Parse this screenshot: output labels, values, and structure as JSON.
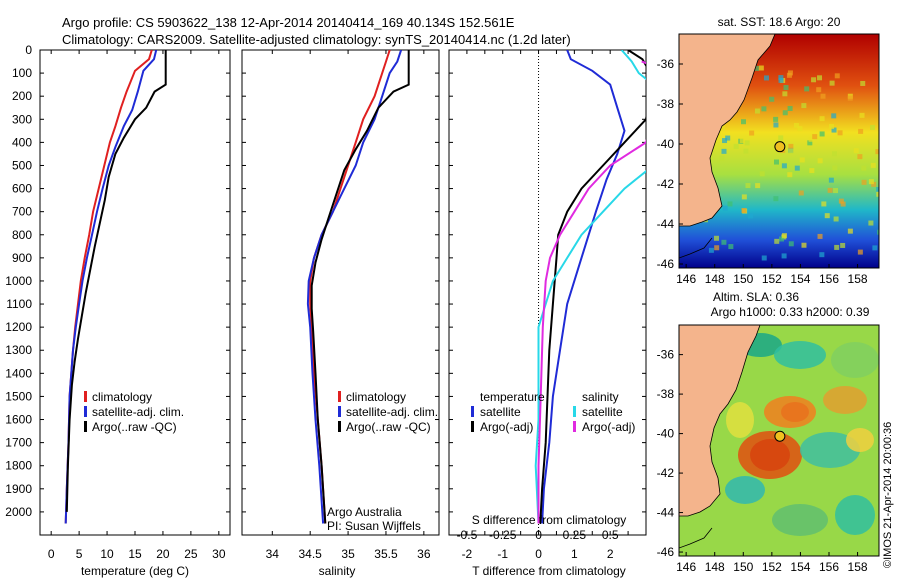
{
  "header": {
    "line1": "Argo profile: CS 5903622_138 12-Apr-2014 20140414_169 40.134S 152.561E",
    "line2": "Climatology: CARS2009. Satellite-adjusted climatology: synTS_20140414.nc (1.2d later)"
  },
  "colors": {
    "climatology": "#e02020",
    "satellite": "#1f2bd6",
    "argo": "#000000",
    "sal_satellite": "#28d8e8",
    "sal_argo": "#e02ae0",
    "land": "#f4b48c"
  },
  "chart_data": [
    {
      "type": "line",
      "xlabel": "temperature (deg C)",
      "xlim": [
        -2,
        32
      ],
      "xticks": [
        0,
        5,
        10,
        15,
        20,
        25,
        30
      ],
      "ylim": [
        2100,
        0
      ],
      "yticks": [
        0,
        100,
        200,
        300,
        400,
        500,
        600,
        700,
        800,
        900,
        1000,
        1100,
        1200,
        1300,
        1400,
        1500,
        1600,
        1700,
        1800,
        1900,
        2000
      ],
      "legend": [
        "climatology",
        "satellite-adj. clim.",
        "Argo(..raw -QC)"
      ],
      "legend_position": "lower-center",
      "series": [
        {
          "name": "climatology",
          "color": "#e02020",
          "points": [
            [
              18,
              0
            ],
            [
              17.5,
              40
            ],
            [
              15,
              90
            ],
            [
              13.5,
              180
            ],
            [
              12.5,
              250
            ],
            [
              11.5,
              330
            ],
            [
              10.5,
              400
            ],
            [
              9.5,
              500
            ],
            [
              8.5,
              600
            ],
            [
              7.5,
              700
            ],
            [
              6.8,
              800
            ],
            [
              6,
              900
            ],
            [
              5.3,
              1000
            ],
            [
              4.8,
              1100
            ],
            [
              4.3,
              1200
            ],
            [
              3.9,
              1300
            ],
            [
              3.6,
              1400
            ],
            [
              3.3,
              1500
            ],
            [
              3.1,
              1700
            ],
            [
              2.8,
              1900
            ],
            [
              2.6,
              2050
            ]
          ]
        },
        {
          "name": "satellite-adj. clim.",
          "color": "#1f2bd6",
          "points": [
            [
              18.8,
              0
            ],
            [
              18.4,
              40
            ],
            [
              16.5,
              90
            ],
            [
              15.5,
              180
            ],
            [
              14.5,
              260
            ],
            [
              13,
              330
            ],
            [
              11.5,
              420
            ],
            [
              10.3,
              500
            ],
            [
              9.2,
              600
            ],
            [
              8.2,
              700
            ],
            [
              7.3,
              800
            ],
            [
              6.4,
              900
            ],
            [
              5.6,
              1000
            ],
            [
              5,
              1100
            ],
            [
              4.4,
              1200
            ],
            [
              3.9,
              1300
            ],
            [
              3.6,
              1400
            ],
            [
              3.3,
              1500
            ],
            [
              3.1,
              1700
            ],
            [
              2.8,
              1900
            ],
            [
              2.6,
              2050
            ]
          ]
        },
        {
          "name": "Argo(..raw -QC)",
          "color": "#000000",
          "points": [
            [
              20.5,
              0
            ],
            [
              20.5,
              150
            ],
            [
              18.5,
              180
            ],
            [
              17,
              250
            ],
            [
              15,
              300
            ],
            [
              13,
              380
            ],
            [
              11.5,
              450
            ],
            [
              10.3,
              550
            ],
            [
              9.6,
              650
            ],
            [
              8.7,
              750
            ],
            [
              7.8,
              850
            ],
            [
              7,
              950
            ],
            [
              6.2,
              1050
            ],
            [
              5.5,
              1150
            ],
            [
              4.8,
              1250
            ],
            [
              4.2,
              1350
            ],
            [
              3.7,
              1450
            ],
            [
              3.3,
              1600
            ],
            [
              3,
              1800
            ],
            [
              2.8,
              2000
            ]
          ]
        }
      ]
    },
    {
      "type": "line",
      "xlabel": "salinity",
      "xlim": [
        33.6,
        36.2
      ],
      "xticks": [
        34,
        34.5,
        35,
        35.5,
        36
      ],
      "ylim": [
        2100,
        0
      ],
      "legend": [
        "climatology",
        "satellite-adj. clim.",
        "Argo(..raw -QC)"
      ],
      "annotations": [
        "Argo Australia",
        "PI: Susan Wijffels"
      ],
      "series": [
        {
          "name": "climatology",
          "color": "#e02020",
          "points": [
            [
              35.55,
              0
            ],
            [
              35.5,
              50
            ],
            [
              35.45,
              100
            ],
            [
              35.35,
              200
            ],
            [
              35.2,
              300
            ],
            [
              35.1,
              400
            ],
            [
              35.0,
              500
            ],
            [
              34.9,
              600
            ],
            [
              34.8,
              700
            ],
            [
              34.65,
              800
            ],
            [
              34.55,
              900
            ],
            [
              34.5,
              1000
            ],
            [
              34.5,
              1100
            ],
            [
              34.52,
              1200
            ],
            [
              34.55,
              1400
            ],
            [
              34.6,
              1600
            ],
            [
              34.65,
              1800
            ],
            [
              34.7,
              2050
            ]
          ]
        },
        {
          "name": "satellite-adj. clim.",
          "color": "#1f2bd6",
          "points": [
            [
              35.7,
              0
            ],
            [
              35.65,
              50
            ],
            [
              35.55,
              100
            ],
            [
              35.45,
              200
            ],
            [
              35.35,
              300
            ],
            [
              35.2,
              400
            ],
            [
              35.1,
              500
            ],
            [
              34.95,
              600
            ],
            [
              34.8,
              700
            ],
            [
              34.65,
              800
            ],
            [
              34.55,
              900
            ],
            [
              34.48,
              1000
            ],
            [
              34.47,
              1100
            ],
            [
              34.5,
              1200
            ],
            [
              34.53,
              1400
            ],
            [
              34.57,
              1600
            ],
            [
              34.62,
              1800
            ],
            [
              34.67,
              2050
            ]
          ]
        },
        {
          "name": "Argo(..raw -QC)",
          "color": "#000000",
          "points": [
            [
              35.8,
              0
            ],
            [
              35.8,
              150
            ],
            [
              35.6,
              180
            ],
            [
              35.4,
              250
            ],
            [
              35.25,
              350
            ],
            [
              35.1,
              430
            ],
            [
              34.95,
              520
            ],
            [
              34.85,
              620
            ],
            [
              34.75,
              720
            ],
            [
              34.65,
              820
            ],
            [
              34.57,
              920
            ],
            [
              34.52,
              1020
            ],
            [
              34.52,
              1120
            ],
            [
              34.54,
              1220
            ],
            [
              34.57,
              1400
            ],
            [
              34.6,
              1600
            ],
            [
              34.65,
              1800
            ],
            [
              34.7,
              2050
            ]
          ]
        }
      ]
    },
    {
      "type": "line",
      "xlabel_bottom": "T difference from climatology",
      "xlabel_top": "S difference from climatology",
      "xlim_T": [
        -2.5,
        3.0
      ],
      "xticks_T": [
        -2,
        -1.5,
        -1,
        -0.5,
        0,
        0.5,
        1,
        1.5,
        2,
        2.5
      ],
      "xticklabels_T": [
        "-2",
        "",
        "-1",
        "",
        "0",
        "",
        "1",
        "",
        "2",
        ""
      ],
      "xticks_S": [
        -0.5,
        -0.25,
        0,
        0.25,
        0.5
      ],
      "ylim": [
        2100,
        0
      ],
      "legend": {
        "temperature": [
          "satellite",
          "Argo(-adj)"
        ],
        "salinity": [
          "satellite",
          "Argo(-adj)"
        ]
      },
      "series": [
        {
          "name": "T satellite",
          "color": "#1f2bd6",
          "points": [
            [
              0.8,
              0
            ],
            [
              0.9,
              40
            ],
            [
              1.5,
              90
            ],
            [
              2,
              150
            ],
            [
              2.2,
              250
            ],
            [
              2.4,
              350
            ],
            [
              2.2,
              450
            ],
            [
              1.9,
              560
            ],
            [
              1.6,
              700
            ],
            [
              1.3,
              850
            ],
            [
              1.1,
              950
            ],
            [
              0.8,
              1100
            ],
            [
              0.6,
              1300
            ],
            [
              0.4,
              1500
            ],
            [
              0.3,
              1700
            ],
            [
              0.15,
              1900
            ],
            [
              0.1,
              2050
            ]
          ]
        },
        {
          "name": "T Argo(-adj)",
          "color": "#000000",
          "points": [
            [
              2.5,
              0
            ],
            [
              2.9,
              40
            ],
            [
              3.2,
              120
            ],
            [
              3,
              300
            ],
            [
              2.4,
              400
            ],
            [
              1.8,
              500
            ],
            [
              1.2,
              600
            ],
            [
              0.8,
              700
            ],
            [
              0.55,
              800
            ],
            [
              0.5,
              900
            ],
            [
              0.45,
              1000
            ],
            [
              0.4,
              1100
            ],
            [
              0.3,
              1300
            ],
            [
              0.25,
              1500
            ],
            [
              0.2,
              1700
            ],
            [
              0.1,
              1900
            ],
            [
              0.05,
              2050
            ]
          ]
        },
        {
          "name": "S satellite",
          "color": "#28d8e8",
          "points": [
            [
              0.58,
              0
            ],
            [
              0.65,
              50
            ],
            [
              0.7,
              100
            ],
            [
              0.9,
              200
            ],
            [
              1.0,
              300
            ],
            [
              0.95,
              400
            ],
            [
              0.8,
              500
            ],
            [
              0.6,
              600
            ],
            [
              0.45,
              700
            ],
            [
              0.3,
              800
            ],
            [
              0.2,
              900
            ],
            [
              0.1,
              1000
            ],
            [
              0.05,
              1100
            ],
            [
              0,
              1200
            ],
            [
              0,
              1400
            ],
            [
              0,
              1600
            ],
            [
              -0.02,
              1800
            ],
            [
              0,
              2050
            ]
          ]
        },
        {
          "name": "S Argo(-adj)",
          "color": "#e02ae0",
          "points": [
            [
              0.72,
              50
            ],
            [
              0.95,
              100
            ],
            [
              0.85,
              150
            ],
            [
              0.9,
              200
            ],
            [
              0.8,
              300
            ],
            [
              0.75,
              400
            ],
            [
              0.5,
              500
            ],
            [
              0.35,
              600
            ],
            [
              0.25,
              700
            ],
            [
              0.15,
              800
            ],
            [
              0.08,
              900
            ],
            [
              0.05,
              1000
            ],
            [
              0.03,
              1200
            ],
            [
              0.02,
              1400
            ],
            [
              0.01,
              1600
            ],
            [
              0,
              1800
            ],
            [
              0,
              2050
            ]
          ]
        }
      ]
    },
    {
      "type": "heatmap",
      "title": "sat. SST: 18.6 Argo: 20",
      "xticks": [
        146,
        148,
        150,
        152,
        154,
        156,
        158
      ],
      "yticks": [
        -36,
        -38,
        -40,
        -42,
        -44,
        -46
      ],
      "xlim": [
        145.5,
        159.5
      ],
      "ylim": [
        -46.2,
        -34.5
      ],
      "argo_position": [
        152.561,
        -40.134
      ]
    },
    {
      "type": "heatmap",
      "title_line1": "Altim. SLA: 0.36",
      "title_line2": "Argo h1000: 0.33 h2000: 0.39",
      "xticks": [
        146,
        148,
        150,
        152,
        154,
        156,
        158
      ],
      "yticks": [
        -36,
        -38,
        -40,
        -42,
        -44,
        -46
      ],
      "xlim": [
        145.5,
        159.5
      ],
      "ylim": [
        -46.2,
        -34.5
      ],
      "argo_position": [
        152.561,
        -40.134
      ]
    }
  ],
  "credit": "©IMOS 21-Apr-2014 20:00:36"
}
